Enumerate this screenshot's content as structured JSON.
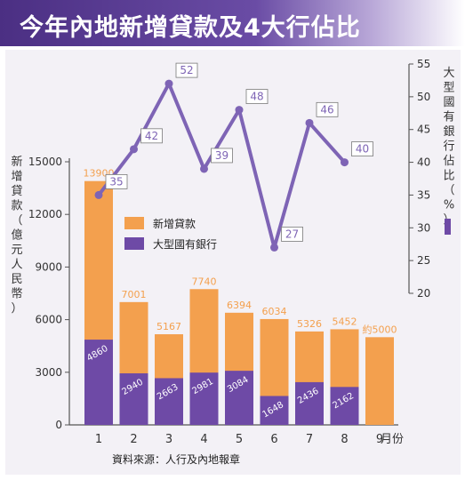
{
  "title": "今年內地新增貸款及4大行佔比",
  "source": "資料來源：人行及內地報章",
  "colors": {
    "title_bg": "#4b2f83",
    "new_loans": "#f3a04e",
    "big_banks": "#6e4aa6",
    "line": "#7e64b5",
    "background": "#f3f1f6"
  },
  "chart_data": {
    "type": "bar",
    "x_unit": "月份",
    "categories": [
      "1",
      "2",
      "3",
      "4",
      "5",
      "6",
      "7",
      "8",
      "9"
    ],
    "left_axis": {
      "label": "新增貸款（億元人民幣）",
      "ylim": [
        0,
        15000
      ],
      "ticks": [
        0,
        3000,
        6000,
        9000,
        12000,
        15000
      ]
    },
    "right_axis": {
      "label": "大型國有銀行佔比（%）",
      "ylim": [
        20,
        55
      ],
      "ticks": [
        20,
        25,
        30,
        35,
        40,
        45,
        50,
        55
      ]
    },
    "series": [
      {
        "name": "新增貸款",
        "type": "bar",
        "values": [
          13900,
          7001,
          5167,
          7740,
          6394,
          6034,
          5326,
          5452,
          5000
        ],
        "labels": [
          "13900",
          "7001",
          "5167",
          "7740",
          "6394",
          "6034",
          "5326",
          "5452",
          "約5000"
        ]
      },
      {
        "name": "大型國有銀行",
        "type": "bar",
        "values": [
          4860,
          2940,
          2663,
          2981,
          3084,
          1648,
          2436,
          2162,
          null
        ],
        "labels": [
          "4860",
          "2940",
          "2663",
          "2981",
          "3084",
          "1648",
          "2436",
          "2162",
          ""
        ]
      },
      {
        "name": "大型國有銀行佔比",
        "type": "line",
        "axis": "right",
        "values": [
          35,
          42,
          52,
          39,
          48,
          27,
          46,
          40,
          null
        ],
        "labels": [
          "35",
          "42",
          "52",
          "39",
          "48",
          "27",
          "46",
          "40",
          ""
        ]
      }
    ],
    "legend": [
      "新增貸款",
      "大型國有銀行"
    ],
    "legend_position": "upper-left"
  }
}
